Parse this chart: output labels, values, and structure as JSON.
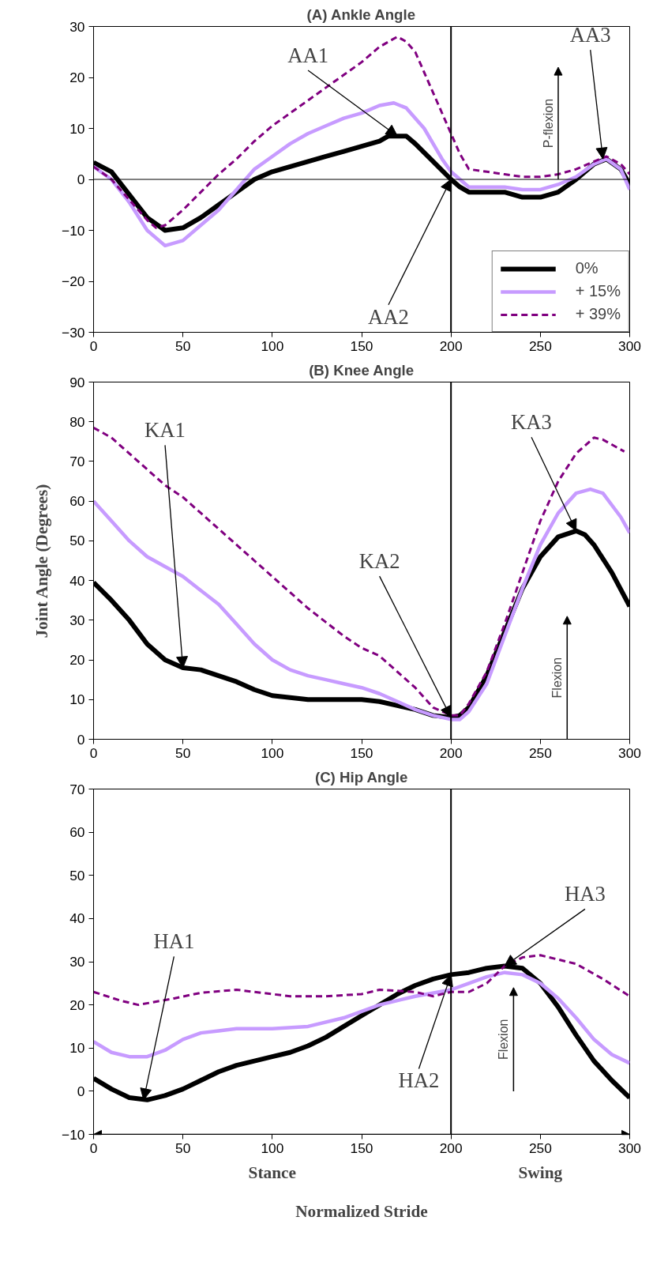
{
  "chart_data": [
    {
      "type": "line",
      "title": "(A) Ankle Angle",
      "xlim": [
        0,
        300
      ],
      "xticks": [
        0,
        50,
        100,
        150,
        200,
        250,
        300
      ],
      "ylim": [
        -30,
        30
      ],
      "yticks": [
        -30,
        -20,
        -10,
        0,
        10,
        20,
        30
      ],
      "grid": false,
      "legend": "bottom right",
      "tick_labels": "xy",
      "series": [
        {
          "name": "0%",
          "color": "#000000",
          "line_style": "solid",
          "x": [
            0,
            10,
            20,
            30,
            40,
            50,
            60,
            70,
            80,
            90,
            100,
            110,
            120,
            130,
            140,
            150,
            160,
            165,
            175,
            180,
            190,
            200,
            205,
            210,
            220,
            230,
            240,
            250,
            260,
            270,
            280,
            287,
            295,
            300
          ],
          "values": [
            3.3,
            1.5,
            -3,
            -7.5,
            -10,
            -9.5,
            -7.5,
            -5,
            -2.5,
            0,
            1.5,
            2.5,
            3.5,
            4.5,
            5.5,
            6.5,
            7.5,
            8.5,
            8.5,
            7,
            3.5,
            0,
            -1.5,
            -2.5,
            -2.5,
            -2.5,
            -3.5,
            -3.5,
            -2.5,
            0,
            3,
            4,
            2,
            -1
          ]
        },
        {
          "name": "+ 15%",
          "color": "#c79bff",
          "line_style": "solid",
          "x": [
            0,
            10,
            20,
            30,
            40,
            50,
            60,
            70,
            80,
            90,
            100,
            110,
            120,
            130,
            140,
            150,
            160,
            168,
            175,
            185,
            195,
            200,
            210,
            220,
            230,
            240,
            250,
            260,
            270,
            280,
            287,
            295,
            300
          ],
          "values": [
            2.5,
            0,
            -4.5,
            -10,
            -13,
            -12,
            -9,
            -6,
            -2,
            2,
            4.5,
            7,
            9,
            10.5,
            12,
            13,
            14.5,
            15,
            14,
            10,
            4,
            1.5,
            -1.5,
            -1.5,
            -1.5,
            -2,
            -2,
            -1,
            0.5,
            3,
            4,
            2,
            -2
          ]
        },
        {
          "name": "+ 39%",
          "color": "#800080",
          "line_style": "dashed",
          "x": [
            0,
            10,
            20,
            30,
            35,
            40,
            50,
            60,
            70,
            80,
            90,
            100,
            110,
            120,
            130,
            140,
            150,
            160,
            170,
            175,
            180,
            190,
            200,
            205,
            210,
            220,
            230,
            240,
            250,
            260,
            270,
            280,
            287,
            295,
            300
          ],
          "values": [
            2.5,
            0,
            -4,
            -8,
            -9.5,
            -9,
            -6,
            -2.5,
            1,
            4,
            7.5,
            10.5,
            13,
            15.5,
            18,
            20.5,
            23,
            26,
            28,
            27,
            25,
            17,
            9,
            5,
            2,
            1.5,
            1,
            0.5,
            0.5,
            1,
            2,
            3.5,
            4.5,
            3,
            1
          ]
        }
      ],
      "ref_lines": [
        {
          "axis": "x",
          "value": 200,
          "color": "#000000"
        },
        {
          "axis": "y",
          "value": 0,
          "color": "#000000",
          "line_style": "solid"
        }
      ],
      "annotations": [
        {
          "text": "AA1",
          "x": 170,
          "y": 8.5
        },
        {
          "text": "AA2",
          "x": 200,
          "y": 0
        },
        {
          "text": "AA3",
          "x": 285,
          "y": 4
        },
        "P-flexion"
      ]
    },
    {
      "type": "line",
      "title": "(B) Knee Angle",
      "ylabel": "Joint Angle (Degrees)",
      "xlim": [
        0,
        300
      ],
      "xticks": [
        0,
        50,
        100,
        150,
        200,
        250,
        300
      ],
      "ylim": [
        0,
        90
      ],
      "yticks": [
        0,
        10,
        20,
        30,
        40,
        50,
        60,
        70,
        80,
        90
      ],
      "grid": false,
      "legend": false,
      "tick_labels": "xy",
      "series": [
        {
          "color": "#000000",
          "line_style": "solid",
          "x": [
            0,
            10,
            20,
            30,
            40,
            50,
            60,
            70,
            80,
            90,
            100,
            110,
            120,
            130,
            140,
            150,
            160,
            170,
            180,
            190,
            200,
            205,
            210,
            220,
            230,
            240,
            250,
            260,
            270,
            275,
            280,
            290,
            300
          ],
          "values": [
            39.5,
            35,
            30,
            24,
            20,
            18,
            17.5,
            16,
            14.5,
            12.5,
            11,
            10.5,
            10,
            10,
            10,
            10,
            9.5,
            8.5,
            7.5,
            6,
            5.5,
            6,
            8,
            16,
            27,
            38,
            46,
            51,
            52.5,
            51.5,
            49,
            42,
            33.5
          ]
        },
        {
          "color": "#c79bff",
          "line_style": "solid",
          "x": [
            0,
            10,
            20,
            30,
            40,
            50,
            60,
            70,
            80,
            90,
            100,
            110,
            120,
            130,
            140,
            150,
            160,
            170,
            180,
            190,
            200,
            205,
            210,
            220,
            230,
            240,
            250,
            260,
            270,
            278,
            285,
            295,
            300
          ],
          "values": [
            60,
            55,
            50,
            46,
            43.5,
            41,
            37.5,
            34,
            29,
            24,
            20,
            17.5,
            16,
            15,
            14,
            13,
            11.5,
            9.5,
            7.5,
            6,
            5,
            5,
            7,
            14,
            26,
            38,
            49,
            57,
            62,
            63,
            62,
            56,
            52
          ]
        },
        {
          "color": "#800080",
          "line_style": "dashed",
          "x": [
            0,
            10,
            20,
            30,
            40,
            50,
            60,
            70,
            80,
            90,
            100,
            110,
            120,
            130,
            140,
            150,
            160,
            170,
            180,
            190,
            200,
            205,
            210,
            220,
            230,
            240,
            250,
            260,
            270,
            280,
            285,
            297
          ],
          "values": [
            78.5,
            76,
            72,
            68,
            64,
            61,
            57,
            53,
            49,
            45,
            41,
            37,
            33,
            29.5,
            26,
            23,
            21,
            17,
            13,
            8,
            6,
            6,
            9,
            17,
            29,
            42,
            55,
            65,
            72,
            76,
            75.5,
            72.5
          ]
        }
      ],
      "ref_lines": [
        {
          "axis": "x",
          "value": 200,
          "color": "#000000"
        }
      ],
      "annotations": [
        {
          "text": "KA1",
          "x": 50,
          "y": 18
        },
        {
          "text": "KA2",
          "x": 200,
          "y": 5.5
        },
        {
          "text": "KA3",
          "x": 270,
          "y": 52.5
        },
        "Flexion"
      ]
    },
    {
      "type": "line",
      "title": "(C) Hip Angle",
      "xlabel": "Normalized Stride",
      "xlim": [
        0,
        300
      ],
      "xticks": [
        0,
        50,
        100,
        150,
        200,
        250,
        300
      ],
      "ylim": [
        -10,
        70
      ],
      "yticks": [
        -10,
        0,
        10,
        20,
        30,
        40,
        50,
        60,
        70
      ],
      "grid": false,
      "legend": false,
      "tick_labels": "xy",
      "series": [
        {
          "color": "#000000",
          "line_style": "solid",
          "x": [
            0,
            10,
            20,
            30,
            40,
            50,
            60,
            70,
            80,
            90,
            100,
            110,
            120,
            130,
            140,
            150,
            160,
            170,
            180,
            190,
            200,
            210,
            220,
            230,
            240,
            250,
            260,
            270,
            280,
            290,
            300
          ],
          "values": [
            3,
            0.5,
            -1.5,
            -2,
            -1,
            0.5,
            2.5,
            4.5,
            6,
            7,
            8,
            9,
            10.5,
            12.5,
            15,
            17.5,
            20,
            22.5,
            24.5,
            26,
            27,
            27.5,
            28.5,
            29,
            28.5,
            25,
            19.5,
            13,
            7,
            2.5,
            -1.5
          ]
        },
        {
          "color": "#c79bff",
          "line_style": "solid",
          "x": [
            0,
            10,
            20,
            30,
            40,
            50,
            60,
            70,
            80,
            100,
            120,
            140,
            160,
            180,
            200,
            210,
            220,
            230,
            240,
            250,
            260,
            270,
            280,
            290,
            300
          ],
          "values": [
            11.5,
            9,
            8,
            8,
            9.5,
            12,
            13.5,
            14,
            14.5,
            14.5,
            15,
            17,
            20,
            22,
            23.5,
            25,
            26.5,
            27.5,
            27,
            25,
            21.5,
            17,
            12,
            8.5,
            6.5
          ]
        },
        {
          "color": "#800080",
          "line_style": "dashed",
          "x": [
            0,
            15,
            25,
            45,
            60,
            80,
            110,
            130,
            150,
            160,
            180,
            190,
            200,
            210,
            220,
            230,
            240,
            250,
            270,
            285,
            300
          ],
          "values": [
            23,
            21,
            20,
            21.5,
            22.8,
            23.5,
            22,
            22,
            22.5,
            23.5,
            23,
            22,
            23,
            23,
            25,
            29,
            31,
            31.5,
            29.5,
            26,
            22
          ]
        }
      ],
      "ref_lines": [
        {
          "axis": "x",
          "value": 200,
          "color": "#000000"
        }
      ],
      "annotations": [
        {
          "text": "HA1",
          "x": 28,
          "y": -2
        },
        {
          "text": "HA2",
          "x": 200,
          "y": 27
        },
        {
          "text": "HA3",
          "x": 230,
          "y": 29
        },
        "Flexion",
        "Stance",
        "Swing"
      ]
    }
  ]
}
